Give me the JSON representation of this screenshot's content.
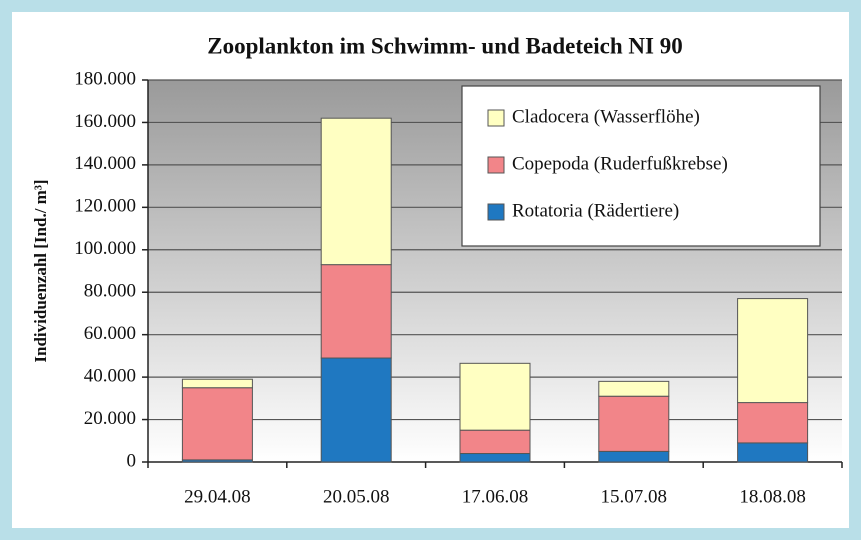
{
  "chart_data": {
    "type": "stacked_bar",
    "title": "Zooplankton im Schwimm- und Badeteich NI 90",
    "y_label": "Individuenzahl [Ind./ m³]",
    "categories": [
      "29.04.08",
      "20.05.08",
      "17.06.08",
      "15.07.08",
      "18.08.08"
    ],
    "series": [
      {
        "name": "Rotatoria (Rädertiere)",
        "color": "#1f78c1",
        "values": [
          1000,
          49000,
          4000,
          5000,
          9000
        ]
      },
      {
        "name": "Copepoda (Ruderfußkrebse)",
        "color": "#f28589",
        "values": [
          34000,
          44000,
          11000,
          26000,
          19000
        ]
      },
      {
        "name": "Cladocera (Wasserflöhe)",
        "color": "#ffffc2",
        "values": [
          4000,
          69000,
          31500,
          7000,
          49000
        ]
      }
    ],
    "ylim": [
      0,
      180000
    ],
    "yticks": [
      0,
      {
        "value": 20000,
        "label": "20.000"
      },
      {
        "value": 40000,
        "label": "40.000"
      },
      {
        "value": 60000,
        "label": "60.000"
      },
      {
        "value": 80000,
        "label": "80.000"
      },
      {
        "value": 100000,
        "label": "100.000"
      },
      {
        "value": 120000,
        "label": "120.000"
      },
      {
        "value": 140000,
        "label": "140.000"
      },
      {
        "value": 160000,
        "label": "160.000"
      },
      {
        "value": 180000,
        "label": "180.000"
      }
    ],
    "grid": true,
    "legend": "upper right"
  }
}
